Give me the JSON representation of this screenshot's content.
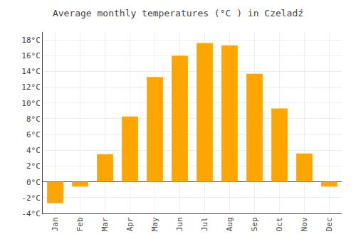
{
  "chart_data": {
    "type": "bar",
    "title": "Average monthly temperatures (°C ) in Czeladź",
    "categories": [
      "Jan",
      "Feb",
      "Mar",
      "Apr",
      "May",
      "Jun",
      "Jul",
      "Aug",
      "Sep",
      "Oct",
      "Nov",
      "Dec"
    ],
    "values": [
      -2.7,
      -0.6,
      3.5,
      8.3,
      13.3,
      16.0,
      17.6,
      17.3,
      13.7,
      9.3,
      3.6,
      -0.6
    ],
    "color": "#FFA500",
    "ylim": [
      -4,
      19
    ],
    "yticks": [
      {
        "value": -4,
        "label": "-4°C"
      },
      {
        "value": -2,
        "label": "-2°C"
      },
      {
        "value": 0,
        "label": "0°C"
      },
      {
        "value": 2,
        "label": "2°C"
      },
      {
        "value": 4,
        "label": "4°C"
      },
      {
        "value": 6,
        "label": "6°C"
      },
      {
        "value": 8,
        "label": "8°C"
      },
      {
        "value": 10,
        "label": "10°C"
      },
      {
        "value": 12,
        "label": "12°C"
      },
      {
        "value": 14,
        "label": "14°C"
      },
      {
        "value": 16,
        "label": "16°C"
      },
      {
        "value": 18,
        "label": "18°C"
      }
    ],
    "grid": true
  }
}
